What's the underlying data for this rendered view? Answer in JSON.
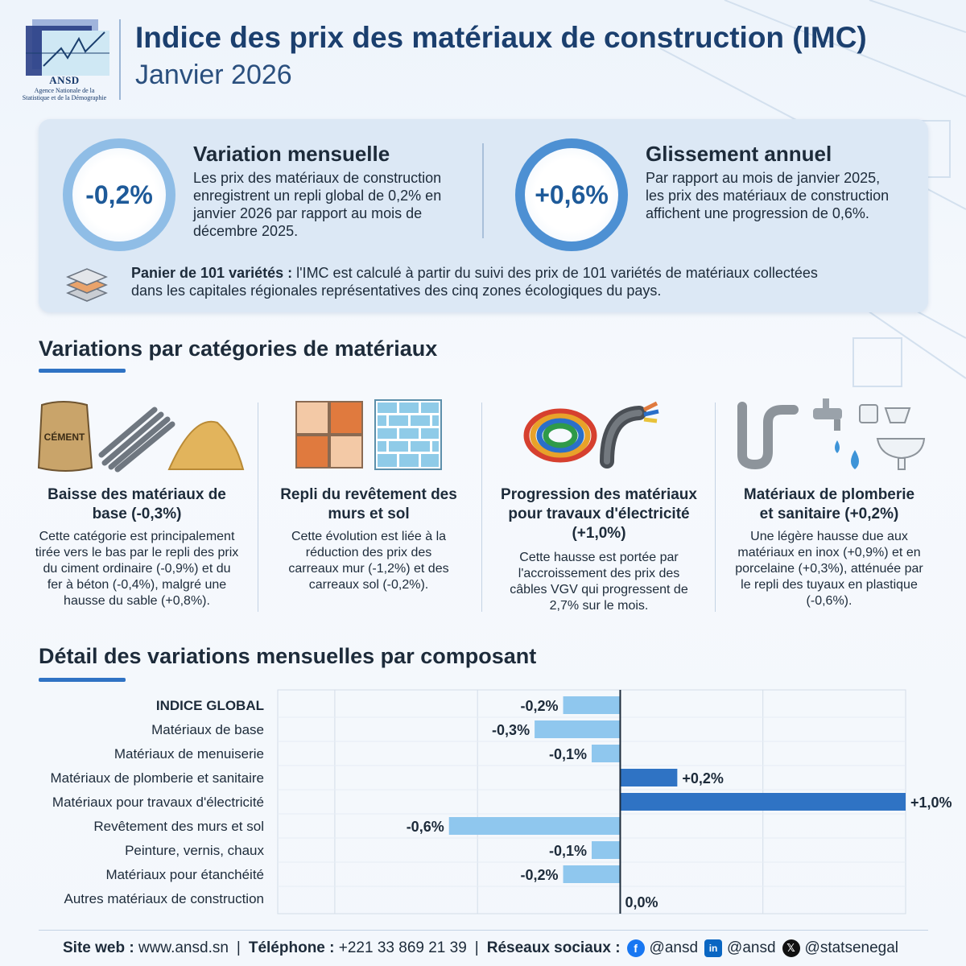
{
  "colors": {
    "accent": "#2f73c4",
    "title": "#1b3f6e",
    "bar_negative": "#8fc7ee",
    "bar_positive": "#2f73c4",
    "card_bg": "#dce8f5"
  },
  "header": {
    "logo_abbr": "ANSD",
    "logo_full_line1": "Agence Nationale de la",
    "logo_full_line2": "Statistique et de la Démographie",
    "title": "Indice des prix des matériaux de construction (IMC)",
    "subtitle": "Janvier 2026"
  },
  "summary": {
    "monthly": {
      "value": "-0,2%",
      "title": "Variation mensuelle",
      "text_lines": [
        "Les prix des matériaux de construction",
        "enregistrent un repli global de 0,2% en",
        "janvier 2026 par rapport au mois de",
        "décembre 2025."
      ]
    },
    "annual": {
      "value": "+0,6%",
      "title": "Glissement annuel",
      "text_lines": [
        "Par rapport au mois de janvier 2025,",
        "les prix des matériaux de construction",
        "affichent une progression de 0,6%."
      ]
    },
    "basket": {
      "bold": "Panier de 101 variétés :",
      "line1": " l'IMC est calculé à partir du suivi des prix de 101 variétés de matériaux collectées",
      "line2": "dans les capitales régionales représentatives des cinq zones écologiques du pays."
    }
  },
  "categories_section": {
    "title": "Variations par catégories de matériaux",
    "items": [
      {
        "icon_names": [
          "cement-bag-icon",
          "steel-rebar-icon",
          "sand-pile-icon"
        ],
        "cement_label": "CÉMENT",
        "title_lines": [
          "Baisse des matériaux de",
          "base (-0,3%)"
        ],
        "text_lines": [
          "Cette catégorie est principalement",
          "tirée vers le bas par le repli des prix",
          "du ciment ordinaire (-0,9%) et du",
          "fer à béton (-0,4%), malgré une",
          "hausse du sable (+0,8%)."
        ]
      },
      {
        "icon_names": [
          "floor-tiles-icon",
          "wall-tiles-icon"
        ],
        "title_lines": [
          "Repli du revêtement des",
          "murs et sol"
        ],
        "text_lines": [
          "Cette évolution est liée à la",
          "réduction des prix des",
          "carreaux mur (-1,2%) et des",
          "carreaux sol (-0,2%)."
        ]
      },
      {
        "icon_names": [
          "cable-coil-icon",
          "vgv-cable-icon"
        ],
        "title_lines": [
          "Progression des matériaux",
          "pour travaux d'électricité",
          "(+1,0%)"
        ],
        "text_lines": [
          "Cette hausse est portée par",
          "l'accroissement des prix des",
          "câbles VGV qui progressent de",
          "2,7% sur le mois."
        ]
      },
      {
        "icon_names": [
          "pipe-icon",
          "faucet-icon",
          "water-drop-icon",
          "sink-icon"
        ],
        "title_lines": [
          "Matériaux de plomberie",
          "et sanitaire (+0,2%)"
        ],
        "text_lines": [
          "Une légère hausse due aux",
          "matériaux en inox (+0,9%) et en",
          "porcelaine (+0,3%), atténuée par",
          "le repli des tuyaux en plastique",
          "(-0,6%)."
        ]
      }
    ]
  },
  "chart_section": {
    "title": "Détail des variations mensuelles par composant"
  },
  "chart_data": {
    "type": "bar",
    "orientation": "horizontal",
    "title": "Détail des variations mensuelles par composant",
    "xlabel": "",
    "ylabel": "",
    "xlim": [
      -1.2,
      1.0
    ],
    "grid": true,
    "categories": [
      "INDICE GLOBAL",
      "Matériaux de base",
      "Matériaux de menuiserie",
      "Matériaux de plomberie et sanitaire",
      "Matériaux pour travaux d'électricité",
      "Revêtement des murs et sol",
      "Peinture, vernis, chaux",
      "Matériaux pour étanchéité",
      "Autres matériaux de construction"
    ],
    "values": [
      -0.2,
      -0.3,
      -0.1,
      0.2,
      1.0,
      -0.6,
      -0.1,
      -0.2,
      0.0
    ],
    "value_labels": [
      "-0,2%",
      "-0,3%",
      "-0,1%",
      "+0,2%",
      "+1,0%",
      "-0,6%",
      "-0,1%",
      "-0,2%",
      "0,0%"
    ]
  },
  "footer": {
    "web_label": "Site web :",
    "web_value": "www.ansd.sn",
    "phone_label": "Téléphone :",
    "phone_value": "+221 33 869 21 39",
    "social_label": "Réseaux sociaux :",
    "facebook": "@ansd",
    "linkedin": "@ansd",
    "x": "@statsenegal"
  }
}
